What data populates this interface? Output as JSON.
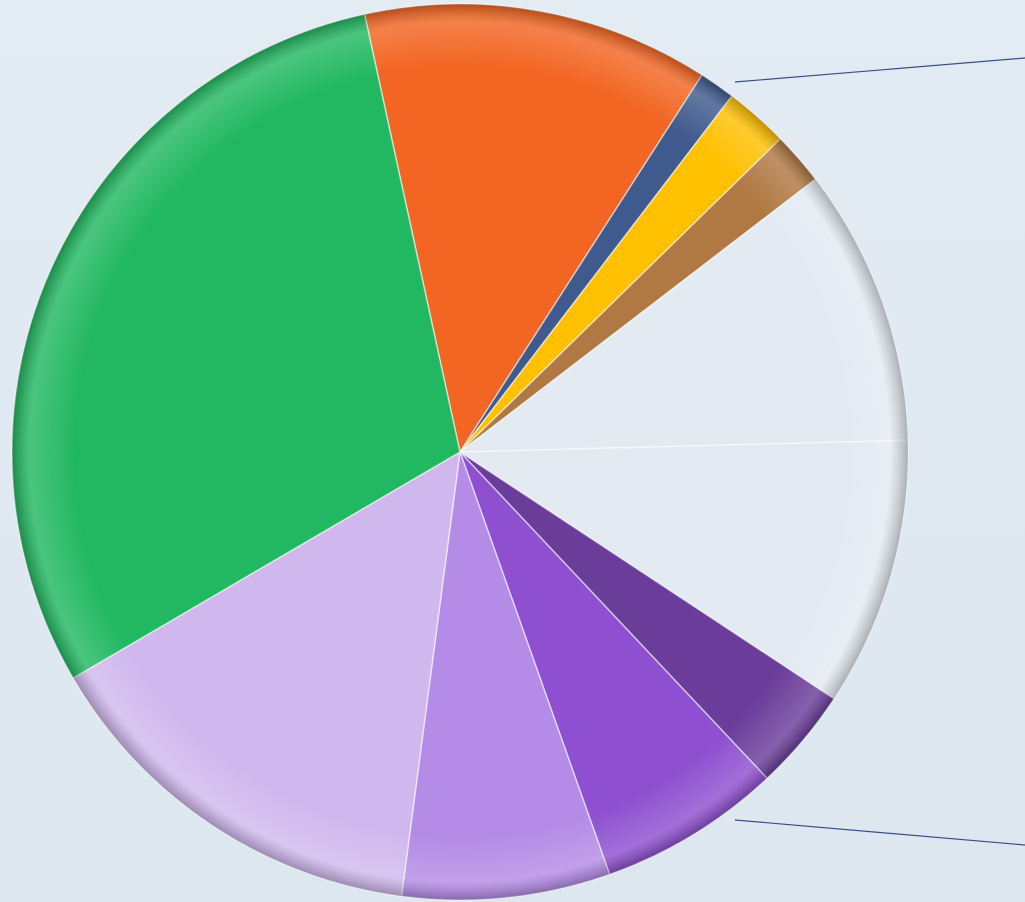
{
  "chart_data": {
    "type": "pie",
    "style": "bar-of-pie (exploded 3D-shaded pie with connector lines to a secondary bar)",
    "title": "",
    "legend": "none",
    "slices": [
      {
        "value": 12.5,
        "color": "#f26522"
      },
      {
        "value": 1.3,
        "color": "#3f5a8c"
      },
      {
        "value": 2.3,
        "color": "#ffc000"
      },
      {
        "value": 1.9,
        "color": "#b07843"
      },
      {
        "value": 10.0,
        "color": "#e3eaf2"
      },
      {
        "value": 9.7,
        "color": "#e3eaf2"
      },
      {
        "value": 3.7,
        "color": "#6a3d9a"
      },
      {
        "value": 6.6,
        "color": "#8e4fd0"
      },
      {
        "value": 7.5,
        "color": "#b48be6"
      },
      {
        "value": 14.5,
        "color": "#d0b8ee"
      },
      {
        "value": 30.0,
        "color": "#22b862"
      }
    ],
    "start_angle_deg": -12.3,
    "connector_lines": 2
  }
}
